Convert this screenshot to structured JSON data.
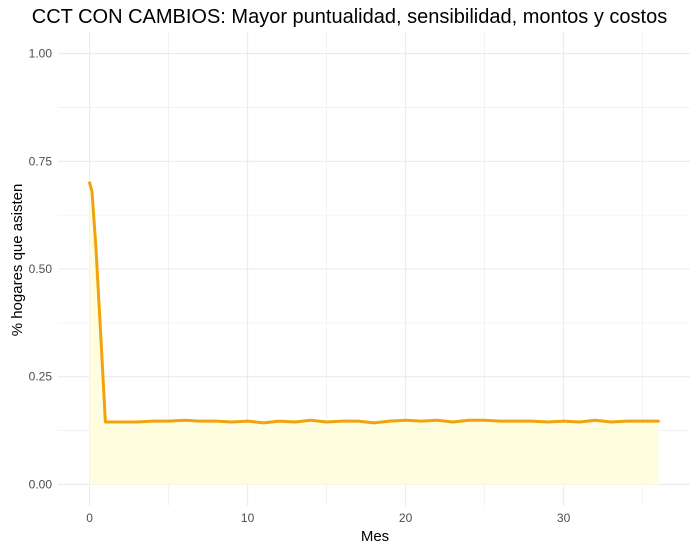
{
  "chart_data": {
    "type": "area",
    "title": "CCT CON CAMBIOS: Mayor puntualidad, sensibilidad, montos y costos",
    "xlabel": "Mes",
    "ylabel": "% hogares que asisten",
    "xlim": [
      -2,
      38
    ],
    "ylim": [
      -0.05,
      1.05
    ],
    "x_ticks": [
      0,
      10,
      20,
      30
    ],
    "x_tick_labels": [
      "0",
      "10",
      "20",
      "30"
    ],
    "y_ticks": [
      0,
      0.25,
      0.5,
      0.75,
      1.0
    ],
    "y_tick_labels": [
      "0.00",
      "0.25",
      "0.50",
      "0.75",
      "1.00"
    ],
    "grid": true,
    "legend": "none",
    "colors": {
      "line": "#F0A30A",
      "fill": "#FFFDE0",
      "grid": "#EBEBEB"
    },
    "series": [
      {
        "x": [
          0,
          0.15,
          0.4,
          0.7,
          1,
          2,
          3,
          4,
          5,
          6,
          7,
          8,
          9,
          10,
          11,
          12,
          13,
          14,
          15,
          16,
          17,
          18,
          19,
          20,
          21,
          22,
          23,
          24,
          25,
          26,
          27,
          28,
          29,
          30,
          31,
          32,
          33,
          34,
          35,
          36
        ],
        "y": [
          0.7,
          0.68,
          0.55,
          0.35,
          0.145,
          0.145,
          0.145,
          0.147,
          0.147,
          0.149,
          0.147,
          0.147,
          0.145,
          0.147,
          0.143,
          0.147,
          0.145,
          0.149,
          0.145,
          0.147,
          0.147,
          0.143,
          0.147,
          0.149,
          0.147,
          0.149,
          0.145,
          0.149,
          0.149,
          0.147,
          0.147,
          0.147,
          0.145,
          0.147,
          0.145,
          0.149,
          0.145,
          0.147,
          0.147,
          0.147
        ]
      }
    ]
  }
}
